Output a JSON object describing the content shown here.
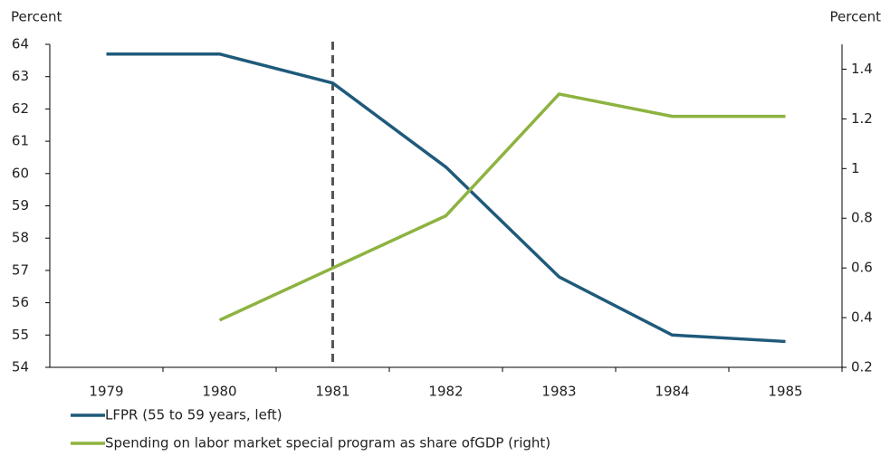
{
  "chart_data": {
    "type": "line",
    "ylabel": "Percent",
    "y2label": "Percent",
    "categories": [
      "1979",
      "1980",
      "1981",
      "1982",
      "1983",
      "1984",
      "1985"
    ],
    "series": [
      {
        "name": "LFPR (55 to 59 years, left)",
        "color": "#1f5a7a",
        "values": [
          63.7,
          63.7,
          62.8,
          60.2,
          56.8,
          55.0,
          54.8
        ]
      },
      {
        "name": "Spending on labor market special program as share ofGDP (right)",
        "color": "#8db340",
        "axis": "y2",
        "values": [
          null,
          0.39,
          0.6,
          0.81,
          1.3,
          1.21,
          1.21
        ]
      }
    ],
    "ylim": [
      54,
      64
    ],
    "yticks": [
      54,
      55,
      56,
      57,
      58,
      59,
      60,
      61,
      62,
      63,
      64
    ],
    "y2lim": [
      0.2,
      1.5
    ],
    "y2ticks": [
      0.2,
      0.4,
      0.6,
      0.8,
      1,
      1.2,
      1.4
    ],
    "vline": "1981",
    "grid": false
  }
}
